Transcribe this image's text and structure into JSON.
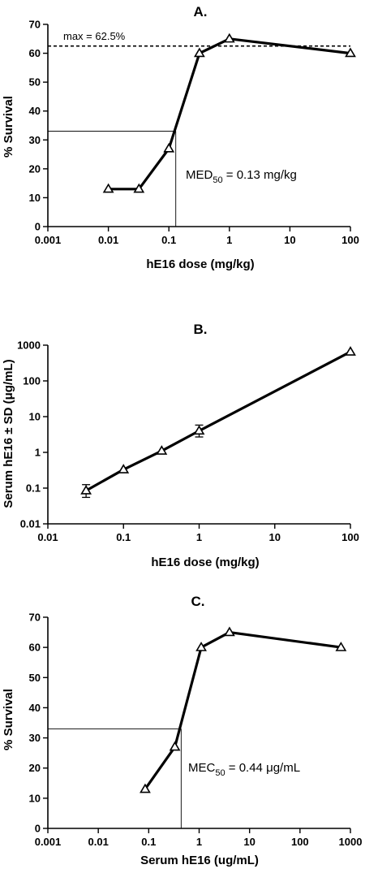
{
  "chart_data": [
    {
      "type": "line",
      "title": "A.",
      "xlabel": "hE16 dose (mg/kg)",
      "ylabel": "% Survival",
      "xscale": "log",
      "xlim": [
        0.001,
        100
      ],
      "ylim": [
        0,
        70
      ],
      "x_ticks": [
        "0.001",
        "0.01",
        "0.1",
        "1",
        "10",
        "100"
      ],
      "y_ticks": [
        "0",
        "10",
        "20",
        "30",
        "40",
        "50",
        "60",
        "70"
      ],
      "series": [
        {
          "x": [
            0.01,
            0.032,
            0.1,
            0.32,
            1,
            100
          ],
          "y": [
            13,
            13,
            27,
            60,
            65,
            60
          ]
        }
      ],
      "max_line": {
        "y": 62.5,
        "label": "max = 62.5%"
      },
      "ref_point": {
        "x": 0.13,
        "y": 33
      },
      "annotation": {
        "main": "MED",
        "sub": "50",
        "rest": " = 0.13 mg/kg"
      },
      "grid": false
    },
    {
      "type": "line",
      "title": "B.",
      "xlabel": "hE16 dose (mg/kg)",
      "ylabel_parts": [
        "Serum hE16 ",
        "±",
        " SD (",
        "μ",
        "g/mL)"
      ],
      "xscale": "log",
      "yscale": "log",
      "xlim": [
        0.01,
        100
      ],
      "ylim": [
        0.01,
        1000
      ],
      "x_ticks": [
        "0.01",
        "0.1",
        "1",
        "10",
        "100"
      ],
      "y_ticks": [
        "0.01",
        "0.1",
        "1",
        "10",
        "100",
        "1000"
      ],
      "series": [
        {
          "x": [
            0.032,
            0.1,
            0.32,
            1,
            100
          ],
          "y": [
            0.085,
            0.33,
            1.1,
            4,
            650
          ],
          "err_low": [
            0.055,
            0.33,
            1.1,
            2.7,
            650
          ],
          "err_high": [
            0.125,
            0.33,
            1.1,
            5.8,
            650
          ]
        }
      ],
      "grid": false
    },
    {
      "type": "line",
      "title": "C.",
      "xlabel": "Serum hE16 (ug/mL)",
      "ylabel": "% Survival",
      "xscale": "log",
      "xlim": [
        0.001,
        1000
      ],
      "ylim": [
        0,
        70
      ],
      "x_ticks": [
        "0.001",
        "0.01",
        "0.1",
        "1",
        "10",
        "100",
        "1000"
      ],
      "y_ticks": [
        "0",
        "10",
        "20",
        "30",
        "40",
        "50",
        "60",
        "70"
      ],
      "series": [
        {
          "x": [
            0.085,
            0.33,
            1.1,
            4,
            650
          ],
          "y": [
            13,
            27,
            60,
            65,
            60
          ]
        }
      ],
      "ref_point": {
        "x": 0.44,
        "y": 33
      },
      "annotation": {
        "main": "MEC",
        "sub": "50",
        "rest_pre": " = 0.44 ",
        "mu": "μ",
        "rest_post": "g/mL"
      },
      "grid": false
    }
  ]
}
